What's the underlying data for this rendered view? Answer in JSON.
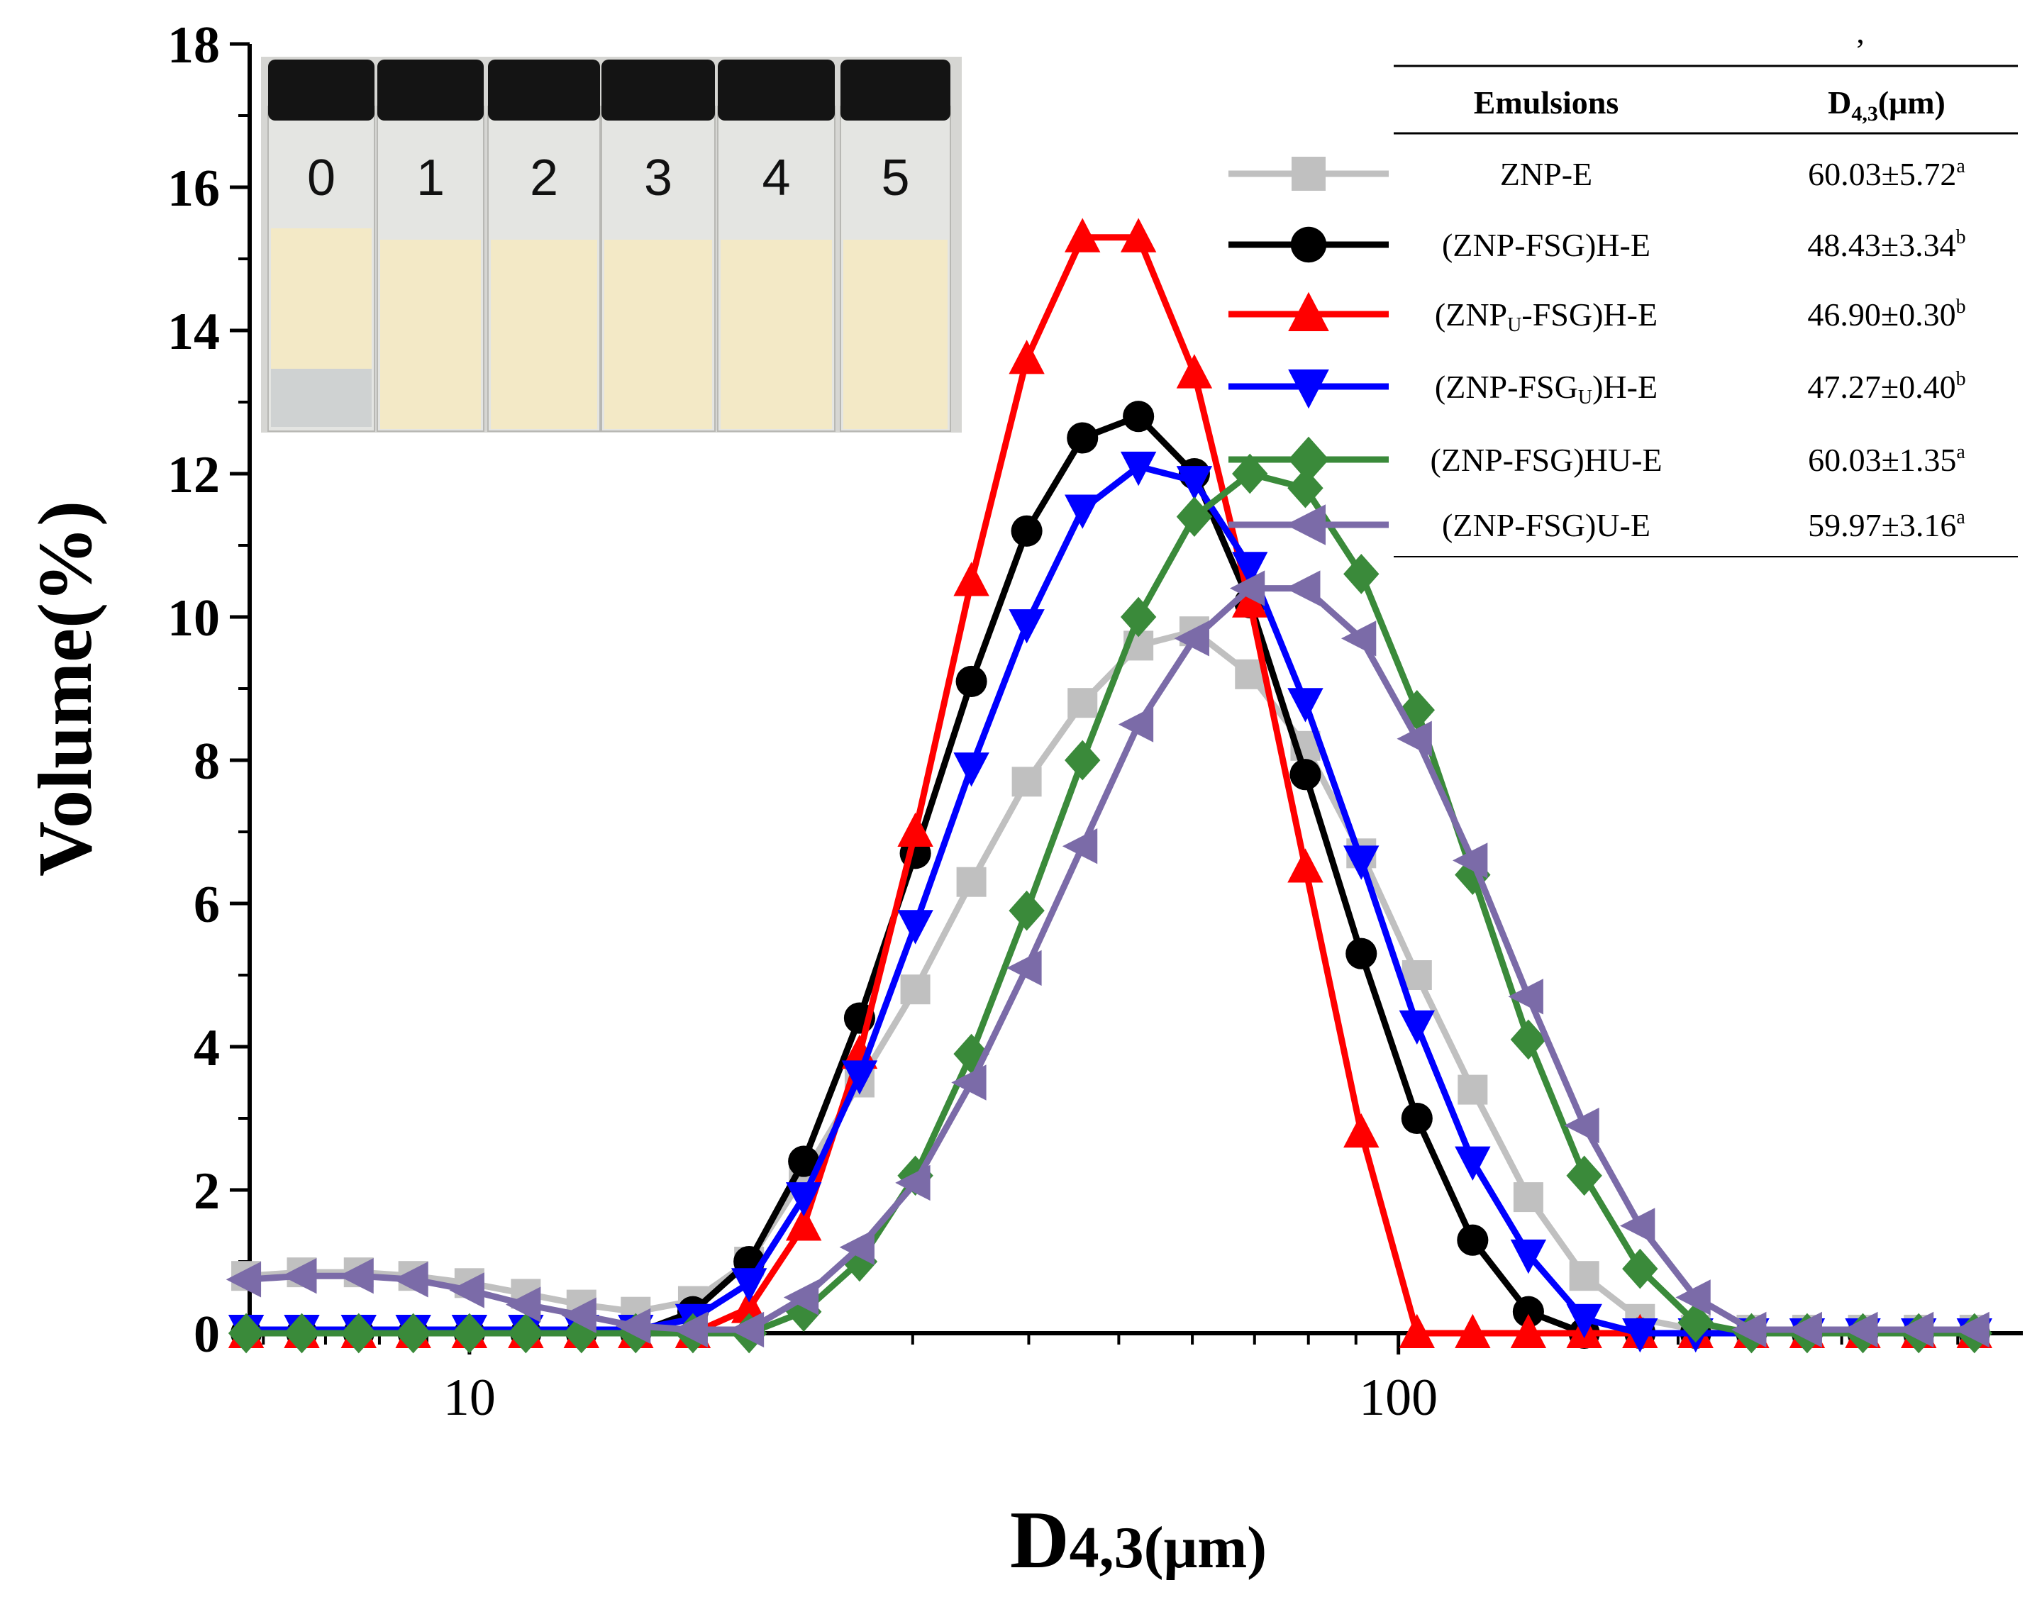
{
  "chart_data": {
    "type": "line",
    "xlabel_main": "D",
    "xlabel_sub": "4,3",
    "xlabel_unit": "(μm)",
    "ylabel": "Volume(%)",
    "xscale": "log",
    "xlim": [
      5.8,
      470
    ],
    "ylim": [
      0,
      18
    ],
    "yticks": [
      0,
      2,
      4,
      6,
      8,
      10,
      12,
      14,
      16,
      18
    ],
    "ytick_labels": [
      "0",
      "2",
      "4",
      "6",
      "8",
      "10",
      "12",
      "14",
      "16",
      "18"
    ],
    "xticks": [
      10,
      100
    ],
    "xtick_labels": [
      "10",
      "100"
    ],
    "x": [
      5.75,
      6.6,
      7.6,
      8.7,
      10.0,
      11.5,
      13.2,
      15.1,
      17.4,
      20.0,
      22.9,
      26.3,
      30.2,
      34.7,
      39.8,
      45.7,
      52.5,
      60.3,
      69.2,
      79.4,
      91.2,
      104.7,
      120.2,
      138.0,
      158.5,
      182.0,
      208.9,
      239.9,
      275.4,
      316.2,
      363.1,
      416.9,
      478.6
    ],
    "series": [
      {
        "name": "ZNP-E",
        "color": "#c0c0c0",
        "marker": "square",
        "values": [
          0.8,
          0.85,
          0.85,
          0.8,
          0.7,
          0.55,
          0.4,
          0.3,
          0.45,
          1.0,
          2.2,
          3.5,
          4.8,
          6.3,
          7.7,
          8.8,
          9.6,
          9.8,
          9.2,
          8.2,
          6.7,
          5.0,
          3.4,
          1.9,
          0.8,
          0.2,
          0.05,
          0.05,
          0.05,
          0.05,
          0.05,
          0.05,
          0.05
        ],
        "legend_label": "ZNP-E",
        "d43": "60.03±5.72",
        "sig": "a"
      },
      {
        "name": "(ZNP-FSG)H-E",
        "color": "#000000",
        "marker": "circle",
        "values": [
          0,
          0,
          0,
          0,
          0,
          0,
          0,
          0,
          0.3,
          1.0,
          2.4,
          4.4,
          6.7,
          9.1,
          11.2,
          12.5,
          12.8,
          12.0,
          10.2,
          7.8,
          5.3,
          3.0,
          1.3,
          0.3,
          0,
          0,
          0,
          0,
          0,
          0,
          0,
          0,
          0
        ],
        "legend_label": "(ZNP-FSG)H-E",
        "d43": "48.43±3.34",
        "sig": "b"
      },
      {
        "name": "(ZNPU-FSG)H-E",
        "color": "#ff0000",
        "marker": "triangle-up",
        "values": [
          0,
          0,
          0,
          0,
          0,
          0,
          0,
          0,
          0,
          0.35,
          1.5,
          3.9,
          7.0,
          10.5,
          13.6,
          15.3,
          15.3,
          13.4,
          10.2,
          6.5,
          2.8,
          0,
          0,
          0,
          0,
          0,
          0,
          0,
          0,
          0,
          0,
          0,
          0
        ],
        "legend_label_pre": "(ZNP",
        "legend_label_sub": "U",
        "legend_label_post": "-FSG)H-E",
        "d43": "46.90±0.30",
        "sig": "b"
      },
      {
        "name": "(ZNP-FSGU)H-E",
        "color": "#0000ff",
        "marker": "triangle-down",
        "values": [
          0.05,
          0.05,
          0.05,
          0.05,
          0.05,
          0.05,
          0.05,
          0.05,
          0.2,
          0.7,
          1.9,
          3.6,
          5.7,
          7.9,
          9.9,
          11.5,
          12.1,
          11.9,
          10.7,
          8.8,
          6.6,
          4.3,
          2.4,
          1.1,
          0.2,
          0,
          0,
          0,
          0,
          0,
          0,
          0,
          0
        ],
        "legend_label_pre": "(ZNP-FSG",
        "legend_label_sub": "U",
        "legend_label_post": ")H-E",
        "d43": "47.27±0.40",
        "sig": "b"
      },
      {
        "name": "(ZNP-FSG)HU-E",
        "color": "#3a8a3a",
        "marker": "diamond",
        "values": [
          0,
          0,
          0,
          0,
          0,
          0,
          0,
          0,
          0,
          0,
          0.3,
          1.0,
          2.2,
          3.9,
          5.9,
          8.0,
          10.0,
          11.4,
          12.0,
          11.8,
          10.6,
          8.7,
          6.4,
          4.1,
          2.2,
          0.9,
          0.15,
          0,
          0,
          0,
          0,
          0,
          0
        ],
        "legend_label": "(ZNP-FSG)HU-E",
        "d43": "60.03±1.35",
        "sig": "a"
      },
      {
        "name": "(ZNP-FSG)U-E",
        "color": "#7b6ba8",
        "marker": "triangle-left",
        "values": [
          0.75,
          0.8,
          0.8,
          0.75,
          0.6,
          0.4,
          0.25,
          0.1,
          0.05,
          0.05,
          0.5,
          1.2,
          2.1,
          3.5,
          5.1,
          6.8,
          8.5,
          9.7,
          10.4,
          10.4,
          9.7,
          8.3,
          6.6,
          4.7,
          2.9,
          1.5,
          0.5,
          0.05,
          0.05,
          0.05,
          0.05,
          0.05,
          0.05
        ],
        "legend_label": "(ZNP-FSG)U-E",
        "d43": "59.97±3.16",
        "sig": "a"
      }
    ],
    "legend": {
      "placement": "top-right",
      "col_emulsions": "Emulsions",
      "col_d43_main": "D",
      "col_d43_sub": "4,3",
      "col_d43_unit": "(μm)",
      "stray_mark": "’"
    },
    "inset": {
      "description_label": "vials",
      "vial_labels": [
        "0",
        "1",
        "2",
        "3",
        "4",
        "5"
      ],
      "cap_color": "#141414",
      "cream_color": "#f3e9c6",
      "background_color": "#d8d8d6"
    }
  }
}
